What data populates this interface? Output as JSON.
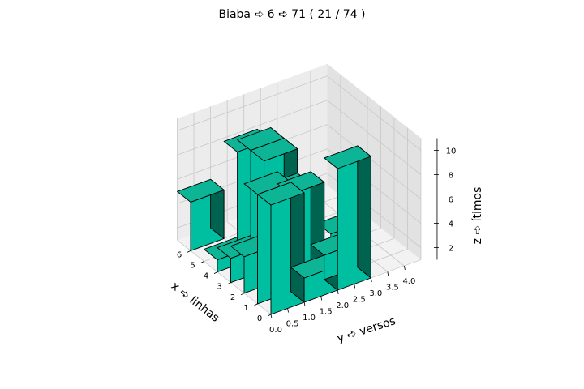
{
  "chart_data": {
    "type": "bar3d",
    "title": "Biaba ➪ 6 ➪ 71 ( 21 / 74 )",
    "xlabel": "x ➪ linhas",
    "ylabel": "y ➪ versos",
    "zlabel": "z ➪ ítimos",
    "x_ticks": [
      "0",
      "1",
      "2",
      "3",
      "4",
      "5",
      "6"
    ],
    "y_ticks": [
      "0.0",
      "0.5",
      "1.0",
      "1.5",
      "2.0",
      "2.5",
      "3.0",
      "3.5",
      "4.0"
    ],
    "z_ticks": [
      "2",
      "4",
      "6",
      "8",
      "10"
    ],
    "xlim": [
      0,
      7
    ],
    "ylim": [
      0,
      4.5
    ],
    "zlim": [
      1,
      11
    ],
    "bar_size": [
      1,
      1
    ],
    "bars": [
      {
        "x": 0,
        "y": 0,
        "z": 10
      },
      {
        "x": 0,
        "y": 1,
        "z": 3
      },
      {
        "x": 0,
        "y": 2,
        "z": 11
      },
      {
        "x": 1,
        "y": 0,
        "z": 10
      },
      {
        "x": 1,
        "y": 1,
        "z": 9
      },
      {
        "x": 1,
        "y": 2,
        "z": 3
      },
      {
        "x": 2,
        "y": 0,
        "z": 4
      },
      {
        "x": 2,
        "y": 1,
        "z": 8
      },
      {
        "x": 3,
        "y": 0,
        "z": 3
      },
      {
        "x": 3,
        "y": 1,
        "z": 10
      },
      {
        "x": 3,
        "y": 3,
        "z": 2
      },
      {
        "x": 4,
        "y": 0,
        "z": 2
      },
      {
        "x": 4,
        "y": 1,
        "z": 10
      },
      {
        "x": 5,
        "y": 1,
        "z": 9
      },
      {
        "x": 6,
        "y": 0,
        "z": 5
      }
    ],
    "colors": {
      "top": "#0db596",
      "front": "#00bfa0",
      "side": "#006350",
      "edge": "#000000",
      "pane_left": "#ececec",
      "pane_right": "#e2e2e2",
      "pane_floor": "#f2f2f2",
      "grid": "#c8c8c8"
    }
  }
}
